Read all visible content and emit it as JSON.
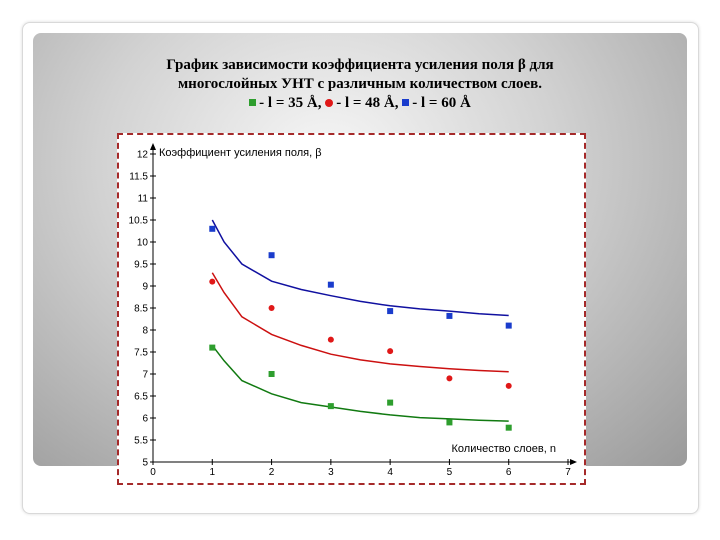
{
  "slide": {
    "title_line1": "График зависимости коэффициента усиления поля β для",
    "title_line2": "многослойных УНТ с различным количеством слоев.",
    "legend": [
      {
        "symbol": "square",
        "color": "#2e9e2e",
        "label": "- l = 35 Å,"
      },
      {
        "symbol": "circle",
        "color": "#e01818",
        "label": "- l = 48 Å,"
      },
      {
        "symbol": "square",
        "color": "#1a3ccc",
        "label": "- l = 60 Å"
      }
    ]
  },
  "chart_data": {
    "type": "scatter",
    "xlabel": "Количество слоев, n",
    "ylabel": "Коэффициент усиления поля, β",
    "xlim": [
      0,
      7
    ],
    "ylim": [
      5,
      12
    ],
    "xticks": [
      0,
      1,
      2,
      3,
      4,
      5,
      6,
      7
    ],
    "yticks": [
      5,
      5.5,
      6,
      6.5,
      7,
      7.5,
      8,
      8.5,
      9,
      9.5,
      10,
      10.5,
      11,
      11.5,
      12
    ],
    "grid": false,
    "series": [
      {
        "marker": "square",
        "color": "#1a3ccc",
        "line_color": "#1010a0",
        "x": [
          1,
          2,
          3,
          4,
          5,
          6
        ],
        "y": [
          10.3,
          9.7,
          9.03,
          8.43,
          8.32,
          8.1
        ],
        "fit": {
          "x": [
            1,
            1.2,
            1.5,
            2,
            2.5,
            3,
            3.5,
            4,
            4.5,
            5,
            5.5,
            6
          ],
          "y": [
            10.5,
            10.0,
            9.5,
            9.11,
            8.92,
            8.78,
            8.65,
            8.55,
            8.48,
            8.43,
            8.37,
            8.33
          ]
        }
      },
      {
        "marker": "circle",
        "color": "#e01818",
        "line_color": "#cc1010",
        "x": [
          1,
          2,
          3,
          4,
          5,
          6
        ],
        "y": [
          9.1,
          8.5,
          7.78,
          7.52,
          6.9,
          6.73
        ],
        "fit": {
          "x": [
            1,
            1.2,
            1.5,
            2,
            2.5,
            3,
            3.5,
            4,
            4.5,
            5,
            5.5,
            6
          ],
          "y": [
            9.3,
            8.85,
            8.3,
            7.9,
            7.65,
            7.45,
            7.32,
            7.23,
            7.17,
            7.12,
            7.08,
            7.05
          ]
        }
      },
      {
        "marker": "square",
        "color": "#2e9e2e",
        "line_color": "#117a11",
        "x": [
          1,
          2,
          3,
          4,
          5,
          6
        ],
        "y": [
          7.6,
          7.0,
          6.27,
          6.35,
          5.9,
          5.78
        ],
        "fit": {
          "x": [
            1,
            1.2,
            1.5,
            2,
            2.5,
            3,
            3.5,
            4,
            4.5,
            5,
            5.5,
            6
          ],
          "y": [
            7.65,
            7.3,
            6.85,
            6.55,
            6.35,
            6.25,
            6.15,
            6.07,
            6.01,
            5.98,
            5.95,
            5.93
          ]
        }
      }
    ]
  }
}
